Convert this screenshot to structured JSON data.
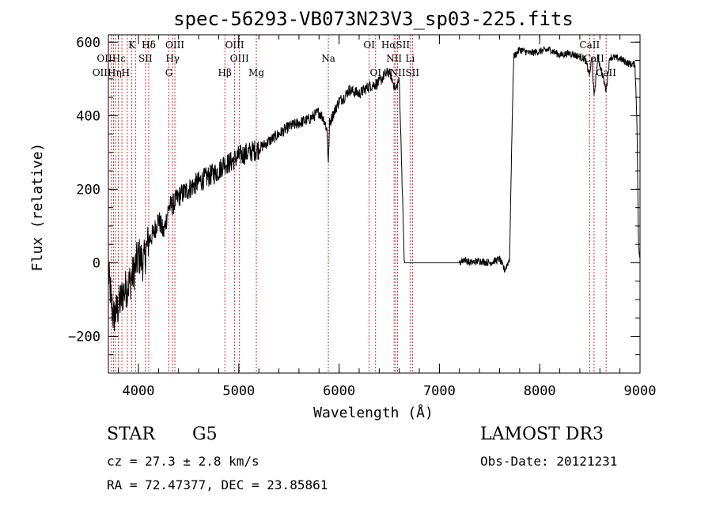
{
  "chart_data": {
    "type": "line",
    "title": "spec-56293-VB073N23V3_sp03-225.fits",
    "xlabel": "Wavelength (Å)",
    "ylabel": "Flux (relative)",
    "xlim": [
      3700,
      9000
    ],
    "ylim": [
      -300,
      620
    ],
    "x_ticks": [
      4000,
      5000,
      6000,
      7000,
      8000,
      9000
    ],
    "x_tick_labels": [
      "4000",
      "5000",
      "6000",
      "7000",
      "8000",
      "9000"
    ],
    "y_ticks": [
      -200,
      0,
      200,
      400,
      600
    ],
    "y_tick_labels": [
      "−200",
      "0",
      "200",
      "400",
      "600"
    ],
    "series": [
      {
        "name": "spectrum",
        "x": [
          3700,
          3750,
          3800,
          3850,
          3900,
          3950,
          4000,
          4050,
          4100,
          4150,
          4200,
          4250,
          4300,
          4350,
          4400,
          4500,
          4600,
          4700,
          4800,
          4850,
          4900,
          5000,
          5100,
          5200,
          5300,
          5400,
          5500,
          5600,
          5700,
          5750,
          5800,
          5850,
          5880,
          5893,
          5905,
          5950,
          6000,
          6050,
          6100,
          6200,
          6300,
          6400,
          6450,
          6500,
          6563,
          6600,
          6650,
          6700,
          6800,
          6900,
          7000,
          7100,
          7200,
          7250,
          7300,
          7400,
          7500,
          7600,
          7650,
          7700,
          7720,
          7740,
          7800,
          7900,
          8000,
          8100,
          8200,
          8300,
          8400,
          8450,
          8498,
          8520,
          8542,
          8580,
          8662,
          8700,
          8800,
          8900,
          8950,
          8970,
          8985,
          9000
        ],
        "y": [
          -30,
          -150,
          -120,
          -80,
          -60,
          -30,
          20,
          0,
          60,
          80,
          120,
          80,
          150,
          160,
          180,
          200,
          220,
          235,
          250,
          270,
          270,
          290,
          300,
          310,
          330,
          350,
          370,
          380,
          390,
          400,
          410,
          390,
          360,
          270,
          380,
          410,
          440,
          450,
          470,
          460,
          480,
          490,
          510,
          520,
          470,
          500,
          0,
          0,
          0,
          0,
          0,
          0,
          0,
          10,
          0,
          5,
          0,
          10,
          -20,
          10,
          310,
          560,
          580,
          570,
          575,
          580,
          565,
          570,
          560,
          555,
          510,
          560,
          450,
          560,
          470,
          560,
          555,
          540,
          540,
          380,
          50,
          0
        ]
      }
    ],
    "lines": [
      {
        "label": "Hδ",
        "x": 4102,
        "row": 0
      },
      {
        "label": "K",
        "x": 3934,
        "row": 0
      },
      {
        "label": "Hδ",
        "x": 4102,
        "row": 0
      },
      {
        "label": "OIII",
        "x": 4363,
        "row": 0
      },
      {
        "label": "OIII",
        "x": 4959,
        "row": 0
      },
      {
        "label": "OI",
        "x": 6300,
        "row": 0
      },
      {
        "label": "HαSII",
        "x": 6563,
        "row": 0
      },
      {
        "label": "CaII",
        "x": 8498,
        "row": 0
      },
      {
        "label": "OIIHε",
        "x": 3727,
        "row": 1
      },
      {
        "label": "SII",
        "x": 4070,
        "row": 1
      },
      {
        "label": "Hγ",
        "x": 4340,
        "row": 1
      },
      {
        "label": "OIII",
        "x": 5007,
        "row": 1
      },
      {
        "label": "Na",
        "x": 5893,
        "row": 1
      },
      {
        "label": "NII",
        "x": 6548,
        "row": 1
      },
      {
        "label": "Li",
        "x": 6708,
        "row": 1
      },
      {
        "label": "CaII",
        "x": 8542,
        "row": 1
      },
      {
        "label": "OIIHηH",
        "x": 3727,
        "row": 2
      },
      {
        "label": "G",
        "x": 4304,
        "row": 2
      },
      {
        "label": "Hβ",
        "x": 4861,
        "row": 2
      },
      {
        "label": "Mg",
        "x": 5175,
        "row": 2
      },
      {
        "label": "OI",
        "x": 6364,
        "row": 2
      },
      {
        "label": "NII",
        "x": 6584,
        "row": 2
      },
      {
        "label": "SII",
        "x": 6731,
        "row": 2
      },
      {
        "label": "CaII",
        "x": 8662,
        "row": 2
      }
    ],
    "line_positions": [
      3727,
      3750,
      3771,
      3798,
      3835,
      3889,
      3934,
      3970,
      4070,
      4102,
      4304,
      4340,
      4363,
      4861,
      4959,
      5007,
      5175,
      5893,
      6300,
      6364,
      6548,
      6563,
      6584,
      6708,
      6731,
      8498,
      8542,
      8662
    ]
  },
  "info": {
    "object_type": "STAR",
    "subclass": "G5",
    "survey": "LAMOST DR3",
    "redshift_line": "cz = 27.3 ± 2.8 km/s",
    "obs_date": "Obs-Date: 20121231",
    "coords": "RA =  72.47377, DEC =  23.85861"
  },
  "colors": {
    "line_marker": "#cc0000",
    "spectrum": "#000000",
    "axes": "#000000"
  }
}
